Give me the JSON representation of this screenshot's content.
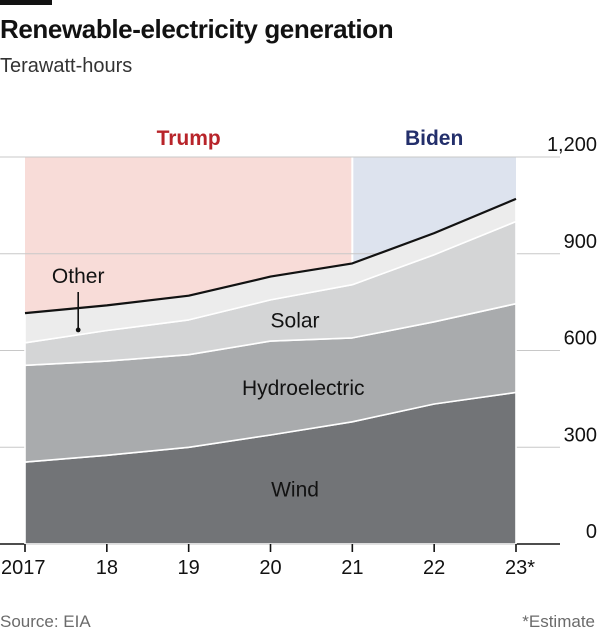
{
  "header": {
    "title": "Renewable-electricity generation",
    "subtitle": "Terawatt-hours"
  },
  "footer": {
    "source": "Source: EIA",
    "note": "*Estimate"
  },
  "colors": {
    "trump_shade": "#f8dcd8",
    "biden_shade": "#dde3ee",
    "trump_label": "#b8242a",
    "biden_label": "#232f6b",
    "wind": "#727477",
    "hydroelectric": "#a9abad",
    "solar": "#d4d5d6",
    "other": "#ececec",
    "total_line": "#121212",
    "grid": "#c8c8c8"
  },
  "chart_data": {
    "type": "area",
    "stacked": true,
    "x": [
      2017,
      2018,
      2019,
      2020,
      2021,
      2022,
      2023
    ],
    "x_tick_labels": [
      "2017",
      "18",
      "19",
      "20",
      "21",
      "22",
      "23*"
    ],
    "ylim": [
      0,
      1200
    ],
    "y_ticks": [
      0,
      300,
      600,
      900,
      1200
    ],
    "y_tick_labels": [
      "0",
      "300",
      "600",
      "900",
      "1,200"
    ],
    "y_axis_side": "right",
    "grid": true,
    "series": [
      {
        "name": "Wind",
        "values": [
          254,
          275,
          300,
          338,
          379,
          434,
          470
        ]
      },
      {
        "name": "Hydroelectric",
        "values": [
          300,
          292,
          287,
          291,
          260,
          255,
          275
        ]
      },
      {
        "name": "Solar",
        "values": [
          70,
          95,
          108,
          128,
          165,
          208,
          255
        ]
      },
      {
        "name": "Other",
        "values": [
          92,
          78,
          75,
          72,
          66,
          67,
          70
        ]
      }
    ],
    "total_line": true,
    "periods": [
      {
        "label": "Trump",
        "start": 2017,
        "end": 2021
      },
      {
        "label": "Biden",
        "start": 2021,
        "end": 2023
      }
    ]
  }
}
